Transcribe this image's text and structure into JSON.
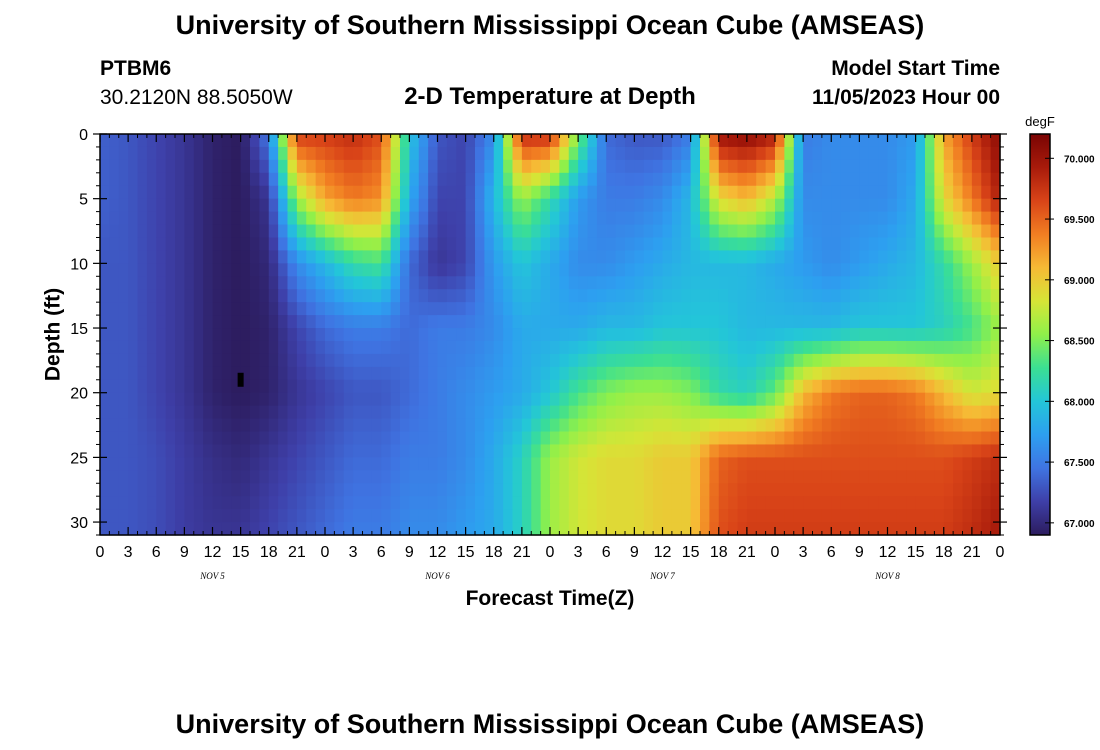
{
  "header": {
    "title": "University of Southern Mississippi Ocean Cube (AMSEAS)",
    "station_id": "PTBM6",
    "coordinates": "30.2120N  88.5050W",
    "subtitle": "2-D Temperature at Depth",
    "model_start_label": "Model Start Time",
    "model_start_value": "11/05/2023 Hour 00"
  },
  "footer": {
    "title": "University of Southern Mississippi Ocean Cube (AMSEAS)"
  },
  "chart_data": {
    "type": "heatmap",
    "xlabel": "Forecast Time(Z)",
    "ylabel": "Depth (ft)",
    "x_hours_range": [
      0,
      96
    ],
    "x_tick_step_hours": 3,
    "x_tick_labels": [
      "0",
      "3",
      "6",
      "9",
      "12",
      "15",
      "18",
      "21",
      "0",
      "3",
      "6",
      "9",
      "12",
      "15",
      "18",
      "21",
      "0",
      "3",
      "6",
      "9",
      "12",
      "15",
      "18",
      "21",
      "0",
      "3",
      "6",
      "9",
      "12",
      "15",
      "18",
      "21",
      "0"
    ],
    "day_labels": [
      {
        "label": "NOV 5",
        "hour": 12
      },
      {
        "label": "NOV 6",
        "hour": 36
      },
      {
        "label": "NOV 7",
        "hour": 60
      },
      {
        "label": "NOV 8",
        "hour": 84
      }
    ],
    "y_range_ft": [
      0,
      31
    ],
    "y_ticks": [
      0,
      5,
      10,
      15,
      20,
      25,
      30
    ],
    "colorbar": {
      "unit": "degF",
      "min": 66.9,
      "max": 70.2,
      "ticks": [
        67.0,
        67.5,
        68.0,
        68.5,
        69.0,
        69.5,
        70.0
      ],
      "tick_labels": [
        "67.000",
        "67.500",
        "68.000",
        "68.500",
        "69.000",
        "69.500",
        "70.000"
      ],
      "colors": [
        "#2c1c5e",
        "#3e3fa8",
        "#3f74e2",
        "#2d9ff0",
        "#23c6d8",
        "#3bdf93",
        "#8ff04a",
        "#d6e536",
        "#f6ba35",
        "#f17e22",
        "#d94418",
        "#a81b0b",
        "#7a0403"
      ]
    },
    "depths_ft": [
      0,
      5,
      10,
      15,
      20,
      25,
      31
    ],
    "times_hours": [
      0,
      3,
      6,
      9,
      12,
      15,
      18,
      21,
      24,
      27,
      30,
      33,
      36,
      39,
      42,
      45,
      48,
      51,
      54,
      57,
      60,
      63,
      66,
      69,
      72,
      75,
      78,
      81,
      84,
      87,
      90,
      93,
      96
    ],
    "temperatures_degF": [
      [
        67.35,
        67.3,
        67.2,
        67.1,
        66.95,
        66.9,
        67.5,
        69.7,
        69.7,
        69.8,
        69.6,
        68.0,
        67.3,
        67.2,
        67.6,
        69.8,
        69.8,
        68.5,
        67.4,
        67.3,
        67.3,
        67.5,
        70.0,
        70.1,
        69.9,
        67.5,
        67.6,
        67.6,
        67.6,
        67.7,
        69.2,
        69.7,
        70.1
      ],
      [
        67.35,
        67.3,
        67.2,
        67.1,
        66.95,
        66.9,
        67.1,
        68.6,
        69.2,
        69.4,
        69.3,
        67.8,
        67.2,
        67.2,
        67.9,
        68.6,
        68.2,
        67.7,
        67.5,
        67.5,
        67.6,
        67.9,
        68.9,
        69.1,
        68.7,
        67.6,
        67.6,
        67.6,
        67.6,
        67.8,
        68.9,
        69.4,
        69.9
      ],
      [
        67.3,
        67.3,
        67.2,
        67.1,
        66.95,
        66.9,
        67.0,
        67.6,
        67.9,
        68.2,
        68.3,
        67.4,
        67.1,
        67.2,
        67.7,
        68.0,
        67.8,
        67.6,
        67.6,
        67.7,
        67.8,
        67.9,
        67.9,
        67.9,
        67.8,
        67.7,
        67.6,
        67.7,
        67.8,
        67.9,
        68.2,
        68.6,
        69.0
      ],
      [
        67.3,
        67.3,
        67.2,
        67.1,
        66.95,
        66.9,
        66.95,
        67.2,
        67.4,
        67.5,
        67.5,
        67.4,
        67.5,
        67.5,
        67.6,
        67.8,
        67.8,
        67.8,
        67.9,
        67.9,
        68.0,
        68.0,
        68.0,
        67.9,
        67.9,
        67.9,
        67.9,
        68.0,
        68.0,
        68.0,
        68.1,
        68.3,
        68.6
      ],
      [
        67.3,
        67.3,
        67.2,
        67.1,
        66.95,
        66.9,
        66.95,
        67.1,
        67.2,
        67.3,
        67.3,
        67.4,
        67.5,
        67.6,
        67.7,
        67.8,
        68.0,
        68.3,
        68.5,
        68.6,
        68.6,
        68.5,
        68.2,
        68.1,
        68.4,
        69.1,
        69.4,
        69.5,
        69.5,
        69.4,
        69.1,
        68.8,
        68.9
      ],
      [
        67.3,
        67.3,
        67.25,
        67.15,
        67.05,
        67.0,
        67.1,
        67.2,
        67.3,
        67.4,
        67.4,
        67.5,
        67.5,
        67.6,
        67.8,
        68.1,
        68.6,
        68.8,
        68.9,
        68.9,
        69.0,
        69.0,
        69.5,
        69.6,
        69.6,
        69.6,
        69.6,
        69.6,
        69.6,
        69.6,
        69.6,
        69.7,
        69.8
      ],
      [
        67.3,
        67.3,
        67.25,
        67.15,
        67.1,
        67.1,
        67.2,
        67.3,
        67.4,
        67.5,
        67.5,
        67.6,
        67.6,
        67.7,
        67.8,
        68.1,
        68.6,
        68.8,
        68.9,
        68.9,
        69.0,
        69.0,
        69.6,
        69.7,
        69.7,
        69.7,
        69.7,
        69.7,
        69.7,
        69.7,
        69.7,
        69.8,
        69.95
      ]
    ],
    "markers": [
      {
        "hour": 15,
        "depth_ft": 19
      }
    ]
  }
}
